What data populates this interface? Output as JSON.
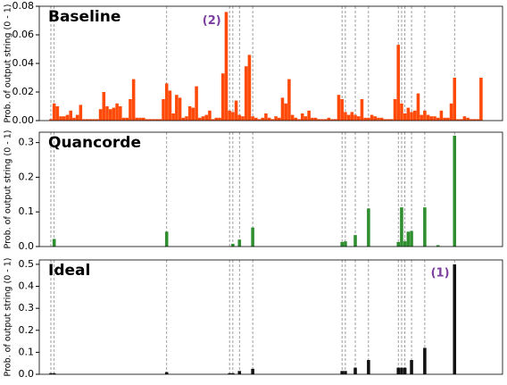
{
  "chart_data": [
    {
      "type": "bar",
      "title": "Baseline",
      "y_label": "Prob. of output string (0 - 1)",
      "color": "#ff4a0a",
      "xlim": [
        -3.5,
        136.5
      ],
      "ylim": [
        0,
        0.08
      ],
      "yticks": [
        {
          "value": 0,
          "label": "0.00"
        },
        0.02,
        0.04,
        0.06,
        0.08
      ],
      "annotation": "(2)",
      "values": [
        0.001,
        0.012,
        0.01,
        0.003,
        0.003,
        0.004,
        0.007,
        0.002,
        0.004,
        0.011,
        0.001,
        0.001,
        0.001,
        0.001,
        0.001,
        0.008,
        0.02,
        0.01,
        0.008,
        0.009,
        0.012,
        0.01,
        0.002,
        0.002,
        0.015,
        0.029,
        0.002,
        0.002,
        0.002,
        0.001,
        0.001,
        0.001,
        0.001,
        0.001,
        0.015,
        0.026,
        0.021,
        0.005,
        0.018,
        0.016,
        0.002,
        0.003,
        0.01,
        0.009,
        0.024,
        0.002,
        0.003,
        0.004,
        0.007,
        0.001,
        0.002,
        0.002,
        0.033,
        0.076,
        0.007,
        0.006,
        0.014,
        0.004,
        0.003,
        0.038,
        0.046,
        0.003,
        0.002,
        0.001,
        0.002,
        0.005,
        0.002,
        0.001,
        0.003,
        0.002,
        0.016,
        0.012,
        0.029,
        0.004,
        0.002,
        0.001,
        0.005,
        0.003,
        0.007,
        0.002,
        0.002,
        0.001,
        0.001,
        0.001,
        0.002,
        0.001,
        0.001,
        0.018,
        0.015,
        0.006,
        0.004,
        0.006,
        0.004,
        0.003,
        0.015,
        0.002,
        0.002,
        0.004,
        0.003,
        0.002,
        0.002,
        0.001,
        0.001,
        0.001,
        0.015,
        0.053,
        0.012,
        0.005,
        0.009,
        0.006,
        0.007,
        0.019,
        0.004,
        0.007,
        0.004,
        0.003,
        0.003,
        0.002,
        0.007,
        0.002,
        0.002,
        0.012,
        0.03,
        0.001,
        0.001,
        0.003,
        0.002,
        0.001,
        0.001,
        0.001,
        0.03
      ]
    },
    {
      "type": "bar",
      "title": "Quancorde",
      "y_label": "Prob. of output string (0 - 1)",
      "color": "#2f8f2f",
      "xlim": [
        -3.5,
        136.5
      ],
      "ylim": [
        0,
        0.33
      ],
      "yticks": [
        {
          "value": 0,
          "label": "0.0"
        },
        0.1,
        0.2,
        0.3
      ],
      "values": [
        0,
        0.022,
        0,
        0,
        0,
        0,
        0,
        0,
        0,
        0,
        0,
        0,
        0,
        0,
        0,
        0,
        0,
        0,
        0,
        0,
        0,
        0,
        0,
        0,
        0,
        0,
        0,
        0,
        0,
        0,
        0,
        0,
        0,
        0,
        0,
        0.043,
        0,
        0,
        0,
        0,
        0,
        0,
        0,
        0,
        0,
        0,
        0,
        0,
        0,
        0,
        0,
        0,
        0,
        0,
        0,
        0.008,
        0,
        0.02,
        0,
        0,
        0,
        0.055,
        0,
        0,
        0,
        0,
        0,
        0,
        0,
        0,
        0,
        0,
        0,
        0,
        0,
        0,
        0,
        0,
        0,
        0,
        0,
        0,
        0,
        0,
        0,
        0,
        0,
        0,
        0.013,
        0.015,
        0,
        0,
        0.033,
        0,
        0,
        0,
        0.11,
        0,
        0,
        0,
        0,
        0,
        0,
        0,
        0,
        0.013,
        0.113,
        0.015,
        0.043,
        0.045,
        0,
        0,
        0,
        0.113,
        0,
        0,
        0,
        0.004,
        0,
        0,
        0,
        0,
        0.32,
        0,
        0,
        0,
        0,
        0,
        0,
        0,
        0
      ]
    },
    {
      "type": "bar",
      "title": "Ideal",
      "y_label": "Prob. of output string (0 - 1)",
      "color": "#111111",
      "xlim": [
        -3.5,
        136.5
      ],
      "ylim": [
        0,
        0.52
      ],
      "yticks": [
        {
          "value": 0,
          "label": "0.0"
        },
        0.1,
        0.2,
        0.3,
        0.4,
        0.5
      ],
      "annotation": "(1)",
      "values": [
        0.005,
        0.005,
        0,
        0,
        0,
        0,
        0,
        0,
        0,
        0,
        0,
        0,
        0,
        0,
        0,
        0,
        0,
        0,
        0,
        0,
        0,
        0,
        0,
        0,
        0,
        0,
        0,
        0,
        0,
        0,
        0,
        0,
        0,
        0,
        0,
        0.01,
        0,
        0,
        0,
        0,
        0,
        0,
        0,
        0,
        0,
        0,
        0,
        0,
        0,
        0,
        0,
        0,
        0,
        0,
        0.005,
        0.005,
        0,
        0.015,
        0,
        0,
        0,
        0.025,
        0,
        0,
        0,
        0,
        0,
        0,
        0,
        0,
        0,
        0,
        0,
        0,
        0,
        0,
        0,
        0,
        0,
        0,
        0,
        0,
        0,
        0,
        0,
        0,
        0,
        0,
        0.015,
        0.015,
        0,
        0,
        0.03,
        0,
        0,
        0,
        0.065,
        0,
        0,
        0,
        0,
        0,
        0,
        0,
        0,
        0.03,
        0.03,
        0.03,
        0,
        0.065,
        0,
        0,
        0,
        0.12,
        0,
        0,
        0,
        0,
        0,
        0,
        0,
        0,
        0.5,
        0,
        0,
        0,
        0,
        0,
        0,
        0,
        0
      ]
    }
  ]
}
